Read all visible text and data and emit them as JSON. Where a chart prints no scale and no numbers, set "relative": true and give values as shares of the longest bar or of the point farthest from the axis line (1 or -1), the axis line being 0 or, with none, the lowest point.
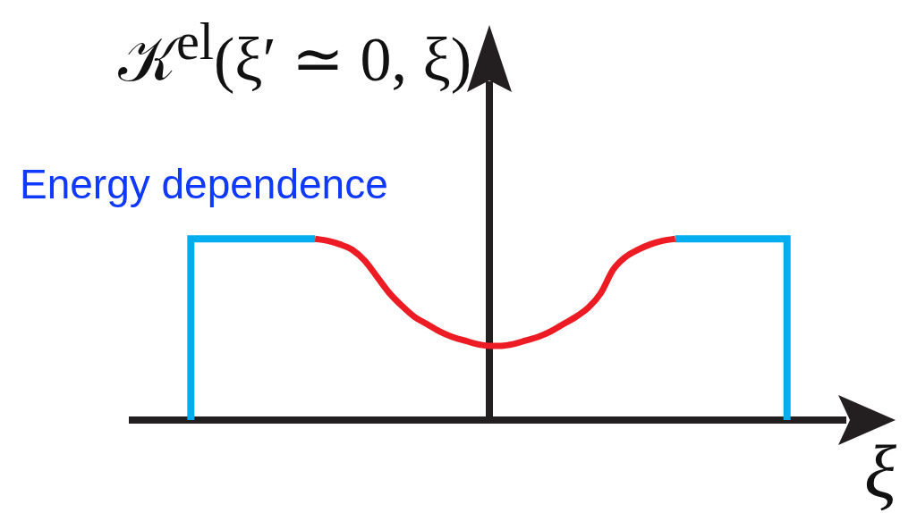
{
  "chart_data": {
    "type": "line",
    "title": "Energy dependence",
    "ylabel": "𝒦$^{el}$(ξ′ ≃ 0, ξ)",
    "xlabel": "ξ",
    "relative": true,
    "marker": "none",
    "categories": [
      null,
      null,
      null,
      null,
      null,
      null,
      null,
      null,
      null,
      null,
      null,
      null,
      null,
      null,
      null,
      null,
      null,
      null,
      null,
      null,
      null,
      null,
      null,
      null,
      null,
      null,
      null,
      null,
      null,
      null,
      null,
      null,
      null,
      null,
      null,
      null,
      null,
      null,
      null,
      null,
      null,
      null,
      null,
      null,
      null,
      null,
      null,
      null,
      null
    ],
    "series": [
      {
        "type": "step",
        "color": "#00aeef",
        "values": [
          0,
          1,
          1,
          1,
          1,
          1,
          1,
          1,
          1,
          1,
          1,
          null,
          null,
          null,
          null,
          null,
          null,
          null,
          null,
          null,
          null,
          null,
          null,
          null,
          null,
          null,
          null,
          null,
          null,
          null,
          null,
          null,
          null,
          null,
          null,
          null,
          null,
          null,
          null,
          null,
          null,
          null,
          null,
          null,
          null,
          null,
          null,
          null,
          null
        ]
      },
      {
        "color": "#ed1c24",
        "values": [
          null,
          null,
          null,
          null,
          null,
          null,
          null,
          null,
          null,
          null,
          1.0,
          0.99,
          0.97,
          0.94,
          0.88,
          0.79,
          0.7,
          0.63,
          0.57,
          0.53,
          0.49,
          0.46,
          0.44,
          0.42,
          0.41,
          0.41,
          0.42,
          0.44,
          0.46,
          0.49,
          0.53,
          0.57,
          0.62,
          0.7,
          0.83,
          0.9,
          0.94,
          0.97,
          0.99,
          1.0,
          null,
          null,
          null,
          null,
          null,
          null,
          null,
          null,
          null
        ]
      },
      {
        "type": "step",
        "color": "#00aeef",
        "values": [
          null,
          null,
          null,
          null,
          null,
          null,
          null,
          null,
          null,
          null,
          null,
          null,
          null,
          null,
          null,
          null,
          null,
          null,
          null,
          null,
          null,
          null,
          null,
          null,
          null,
          null,
          null,
          null,
          null,
          null,
          null,
          null,
          null,
          null,
          null,
          null,
          null,
          null,
          null,
          1,
          1,
          1,
          1,
          1,
          1,
          1,
          1,
          1,
          0
        ]
      }
    ]
  }
}
